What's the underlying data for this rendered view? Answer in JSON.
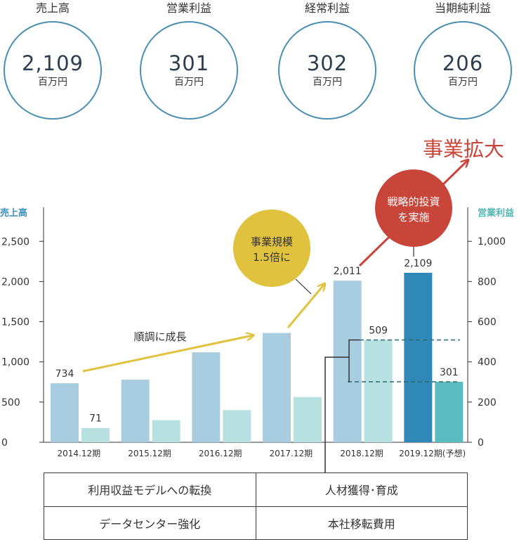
{
  "kpis": [
    {
      "label": "売上高",
      "value": "2,109",
      "unit": "百万円"
    },
    {
      "label": "営業利益",
      "value": "301",
      "unit": "百万円"
    },
    {
      "label": "経常利益",
      "value": "302",
      "unit": "百万円"
    },
    {
      "label": "当期純利益",
      "value": "206",
      "unit": "百万円"
    }
  ],
  "colors": {
    "circle_border": "#4a8fb2",
    "sales_bar": "#a9cde0",
    "sales_bar_highlight": "#2f88b8",
    "profit_bar": "#b6e1e0",
    "profit_bar_highlight": "#5bbcbf",
    "growth_arrow": "#e0c23f",
    "expansion_arrow": "#c8453a",
    "left_axis_label": "#3a8fc0",
    "right_axis_label": "#4fb6b4"
  },
  "chart_data": {
    "type": "bar",
    "categories": [
      "2014.12期",
      "2015.12期",
      "2016.12期",
      "2017.12期",
      "2018.12期",
      "2019.12期(予想)"
    ],
    "series": [
      {
        "name": "売上高",
        "axis": "left",
        "values": [
          734,
          780,
          1120,
          1360,
          2011,
          2109
        ]
      },
      {
        "name": "営業利益",
        "axis": "right",
        "values": [
          71,
          110,
          160,
          225,
          509,
          301
        ]
      }
    ],
    "data_labels": {
      "sales": [
        "734",
        "",
        "",
        "",
        "2,011",
        "2,109"
      ],
      "profit": [
        "71",
        "",
        "",
        "",
        "509",
        "301"
      ]
    },
    "left_axis": {
      "label": "売上高",
      "ylim": [
        0,
        3000
      ],
      "ticks": [
        "0",
        "500",
        "1,000",
        "1,500",
        "2,000",
        "2,500"
      ]
    },
    "right_axis": {
      "label": "営業利益",
      "ylim": [
        0,
        1200
      ],
      "ticks": [
        "0",
        "200",
        "400",
        "600",
        "800",
        "1,000"
      ]
    },
    "annotations": {
      "growth_text": "順調に成長",
      "scale_bubble": [
        "事業規模",
        "1.5倍に"
      ],
      "invest_bubble": [
        "戦略的投資",
        "を実施"
      ],
      "expansion_text": "事業拡大"
    },
    "grid": false
  },
  "factors": [
    [
      "利用収益モデルへの転換",
      "人材獲得･育成"
    ],
    [
      "データセンター強化",
      "本社移転費用"
    ]
  ]
}
